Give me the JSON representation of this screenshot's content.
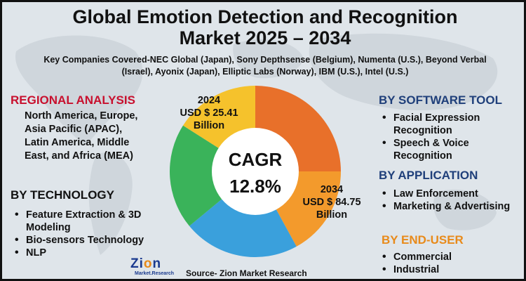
{
  "title": {
    "line1": "Global Emotion Detection and Recognition",
    "line2": "Market 2025 – 2034"
  },
  "companies": "Key Companies Covered-NEC Global (Japan), Sony Depthsense (Belgium), Numenta (U.S.), Beyond Verbal (Israel), Ayonix (Japan), Elliptic Labs (Norway), IBM (U.S.), Intel (U.S.)",
  "regional": {
    "heading": "REGIONAL ANALYSIS",
    "text": "North America, Europe, Asia Pacific (APAC), Latin America, Middle East, and Africa (MEA)"
  },
  "technology": {
    "heading": "BY TECHNOLOGY",
    "items": [
      {
        "label": "Feature Extraction & 3D Modeling"
      },
      {
        "label": "Bio-sensors Technology"
      },
      {
        "label": "NLP"
      }
    ]
  },
  "software_tool": {
    "heading": "BY SOFTWARE TOOL",
    "items": [
      {
        "label": "Facial Expression Recognition"
      },
      {
        "label": "Speech & Voice Recognition"
      }
    ]
  },
  "application": {
    "heading": "BY APPLICATION",
    "items": [
      {
        "label": "Law Enforcement"
      },
      {
        "label": "Marketing & Advertising"
      }
    ]
  },
  "end_user": {
    "heading": "BY END-USER",
    "items": [
      {
        "label": "Commercial"
      },
      {
        "label": "Industrial"
      }
    ]
  },
  "donut": {
    "cagr_label": "CAGR",
    "cagr_value": "12.8%",
    "year_start": "2024",
    "value_start": "USD $ 25.41",
    "unit_start": "Billion",
    "year_end": "2034",
    "value_end": "USD $ 84.75",
    "unit_end": "Billion",
    "segments": [
      {
        "color": "#e8702a",
        "share": 0.25
      },
      {
        "color": "#f39a2c",
        "share": 0.17
      },
      {
        "color": "#3aa0dc",
        "share": 0.22
      },
      {
        "color": "#3ab35a",
        "share": 0.2
      },
      {
        "color": "#f5c22c",
        "share": 0.16
      }
    ]
  },
  "source": "Source- Zion Market Research",
  "logo": {
    "name_main": "Zi",
    "name_o": "o",
    "name_end": "n",
    "sub": "Market.Research"
  }
}
